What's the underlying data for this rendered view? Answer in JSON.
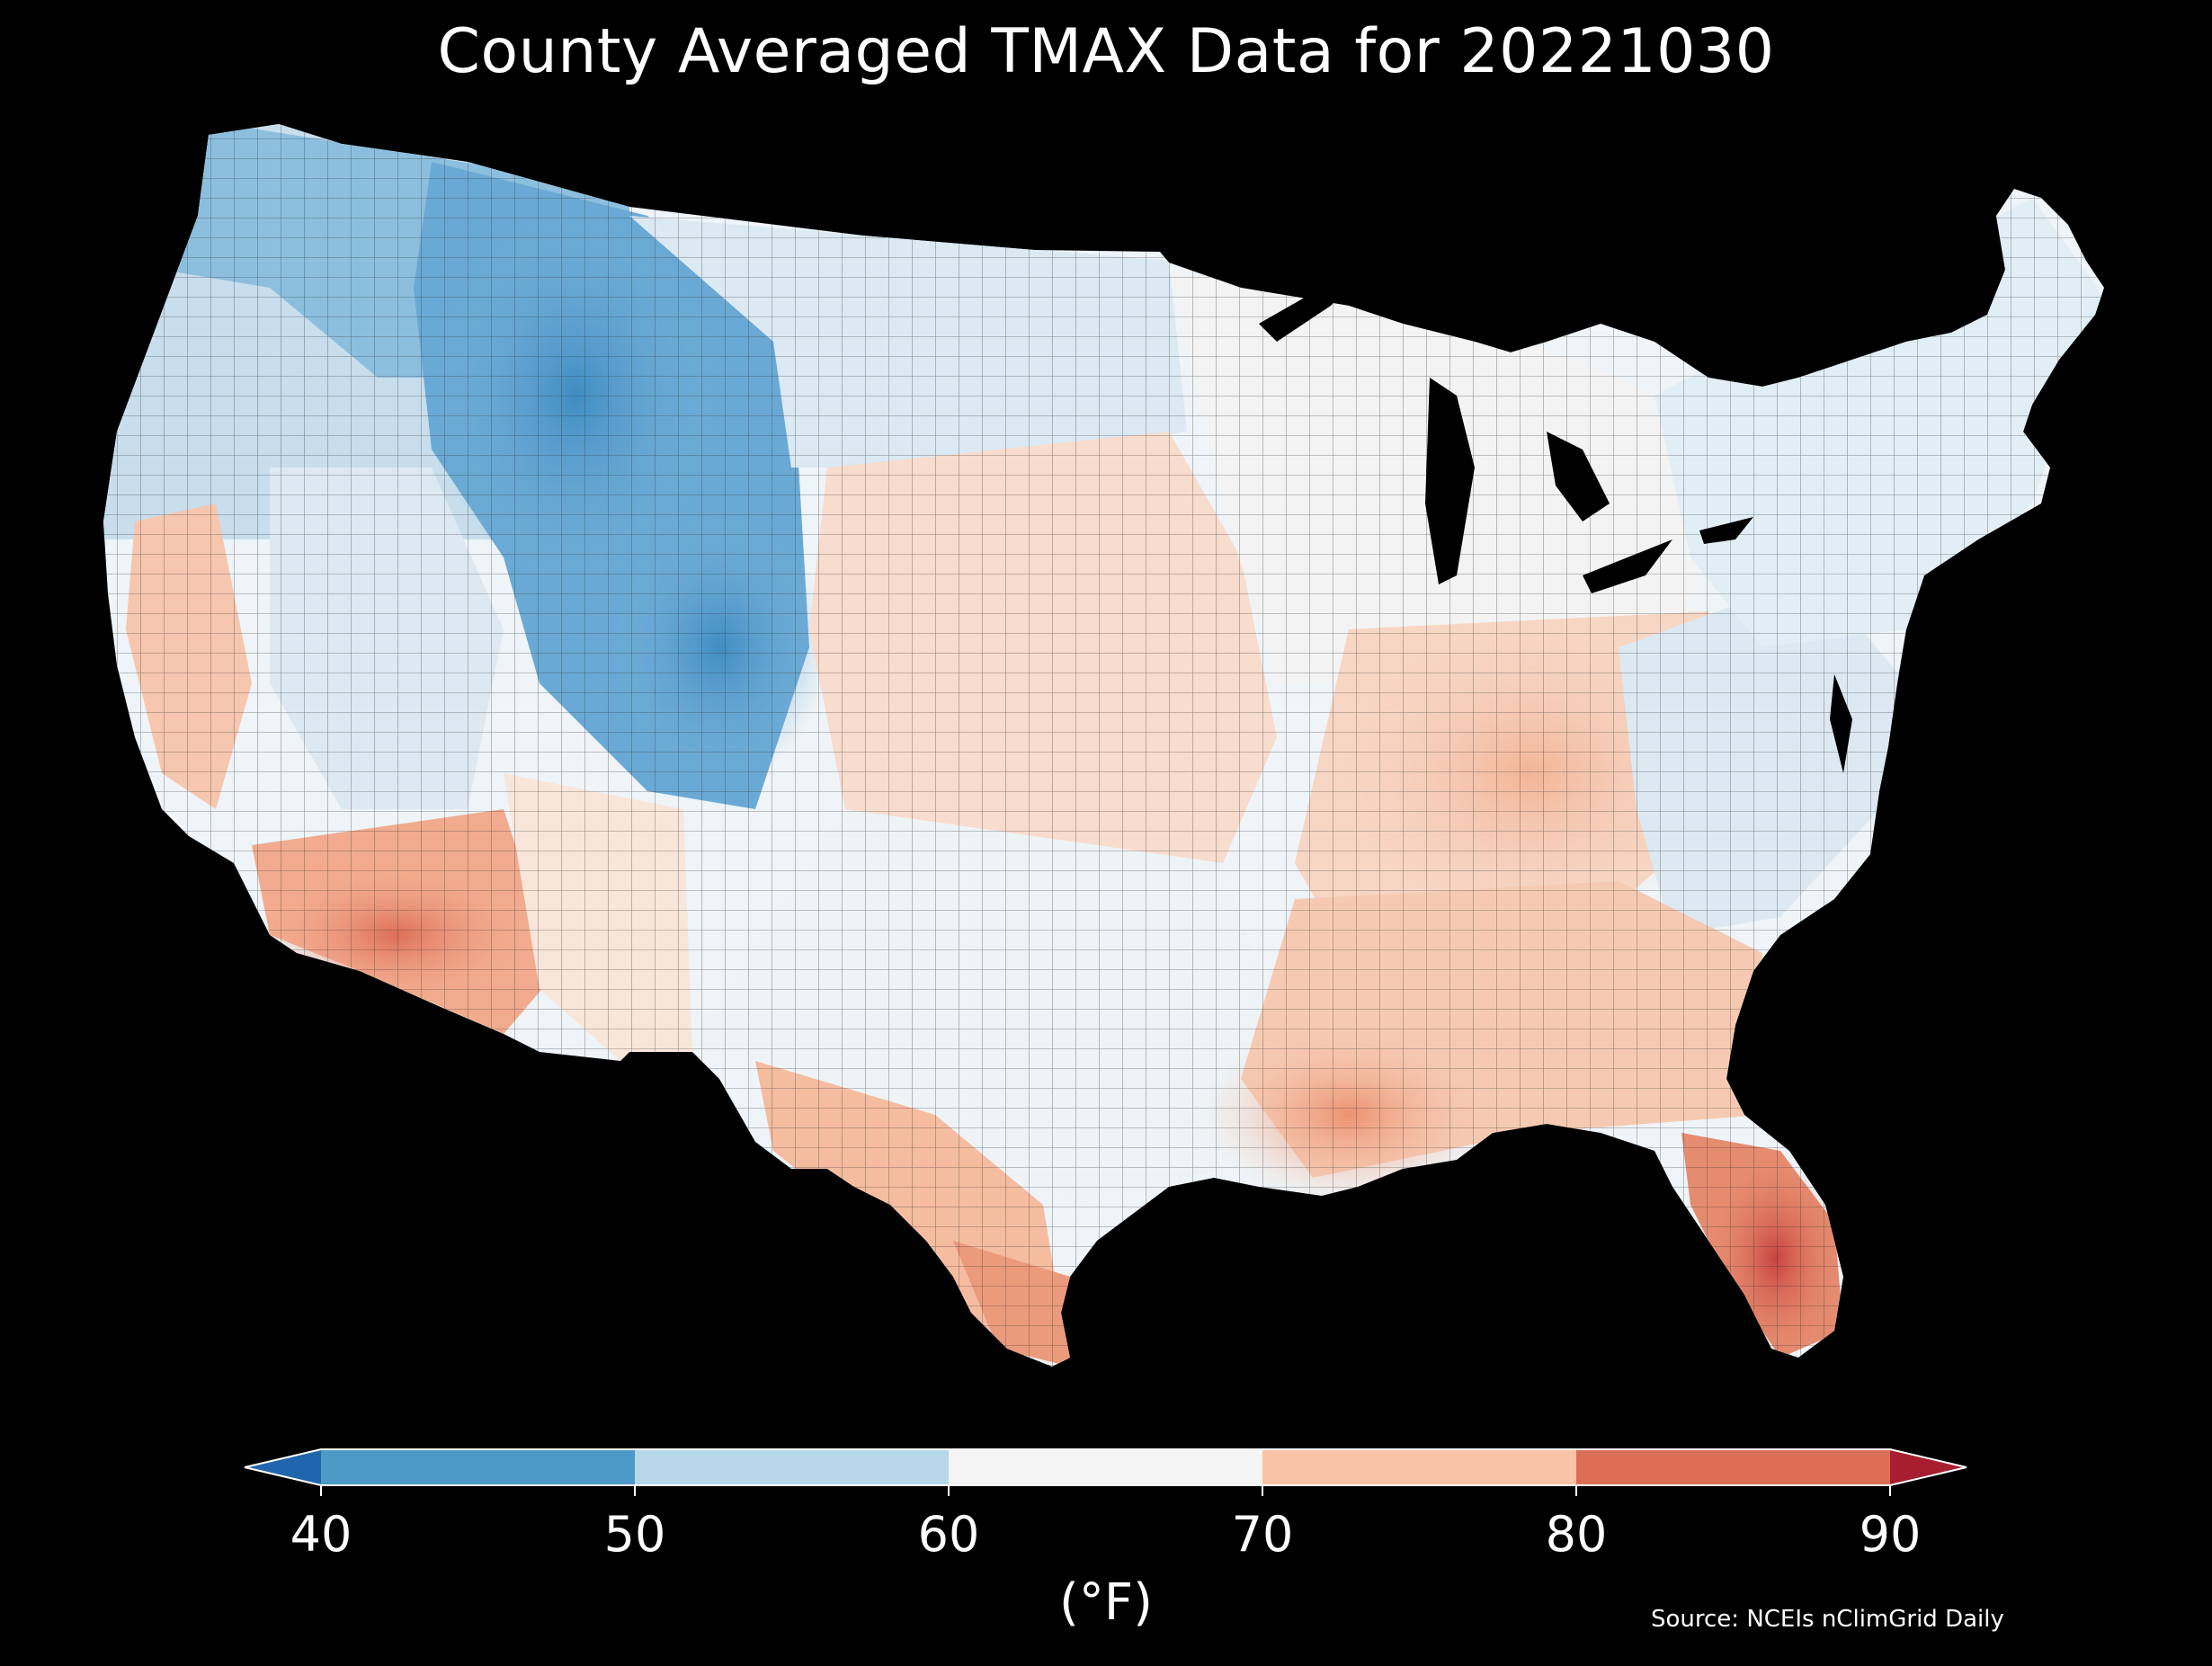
{
  "title": "County Averaged TMAX Data for 20221030",
  "colorbar": {
    "units": "(°F)",
    "ticks": [
      "40",
      "50",
      "60",
      "70",
      "80",
      "90"
    ],
    "bins": [
      {
        "range": [
          40,
          50
        ],
        "color": "#4b9ac7"
      },
      {
        "range": [
          50,
          60
        ],
        "color": "#b6d7e8"
      },
      {
        "range": [
          60,
          70
        ],
        "color": "#f5f5f5"
      },
      {
        "range": [
          70,
          80
        ],
        "color": "#f9c3a8"
      },
      {
        "range": [
          80,
          90
        ],
        "color": "#dc6e56"
      }
    ],
    "under_color": "#2166ac",
    "over_color": "#a61e30"
  },
  "source": "Source: NCEIs nClimGrid Daily",
  "map_colors": {
    "northwest": "#8cbfde",
    "rockies": "#5a9fcf",
    "plains_north": "#dbe9f3",
    "midwest": "#f3f3f3",
    "central_plains": "#f8dccd",
    "southeast_inland": "#f6cab2",
    "gulf_coast": "#ef9f80",
    "florida": "#d25a4c",
    "southwest_desert": "#e4806a",
    "california_coast": "#f6c6ae",
    "northeast": "#e2eef6",
    "appalachia": "#dce9f2",
    "ohio_valley": "#f7d6c4"
  }
}
